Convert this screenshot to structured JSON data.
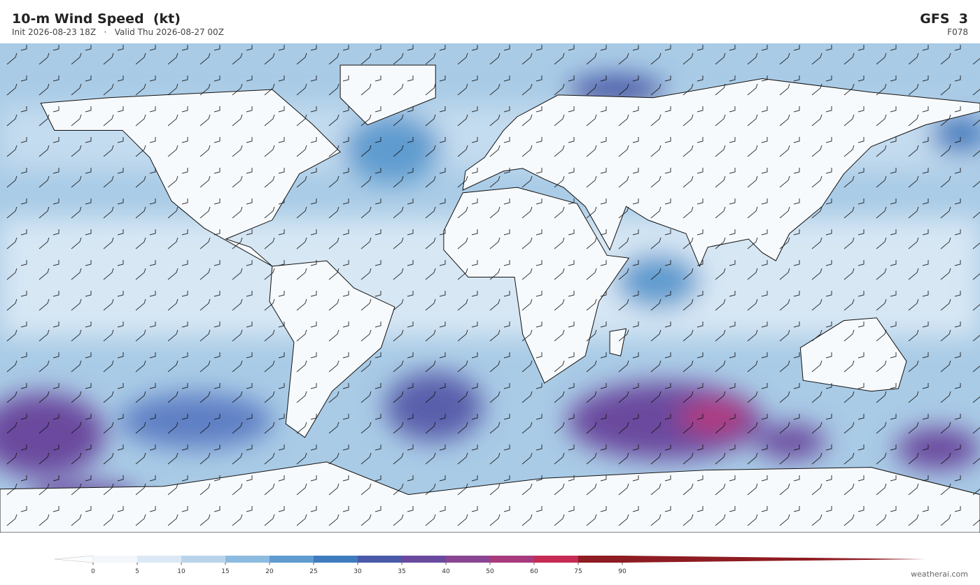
{
  "header": {
    "title": "10-m Wind Speed  (kt)",
    "init": "Init 2026-08-23 18Z",
    "separator": "·",
    "valid": "Valid Thu 2026-08-27 00Z",
    "model": "GFS  3",
    "step": "F078"
  },
  "colorbar": {
    "ticks": [
      0,
      5,
      10,
      15,
      20,
      25,
      30,
      35,
      40,
      50,
      60,
      75,
      90
    ],
    "colors": [
      "#f3f7fb",
      "#dce9f5",
      "#b9d4ea",
      "#8dbbdf",
      "#5f9bcf",
      "#3f7bbf",
      "#4a5aa8",
      "#6a4a9e",
      "#8a4592",
      "#a83a7e",
      "#c52b55",
      "#8e1c22"
    ],
    "under_color": "#fbfcfe",
    "over_color": "#8e1c22"
  },
  "watermark": "weatherai.com"
}
